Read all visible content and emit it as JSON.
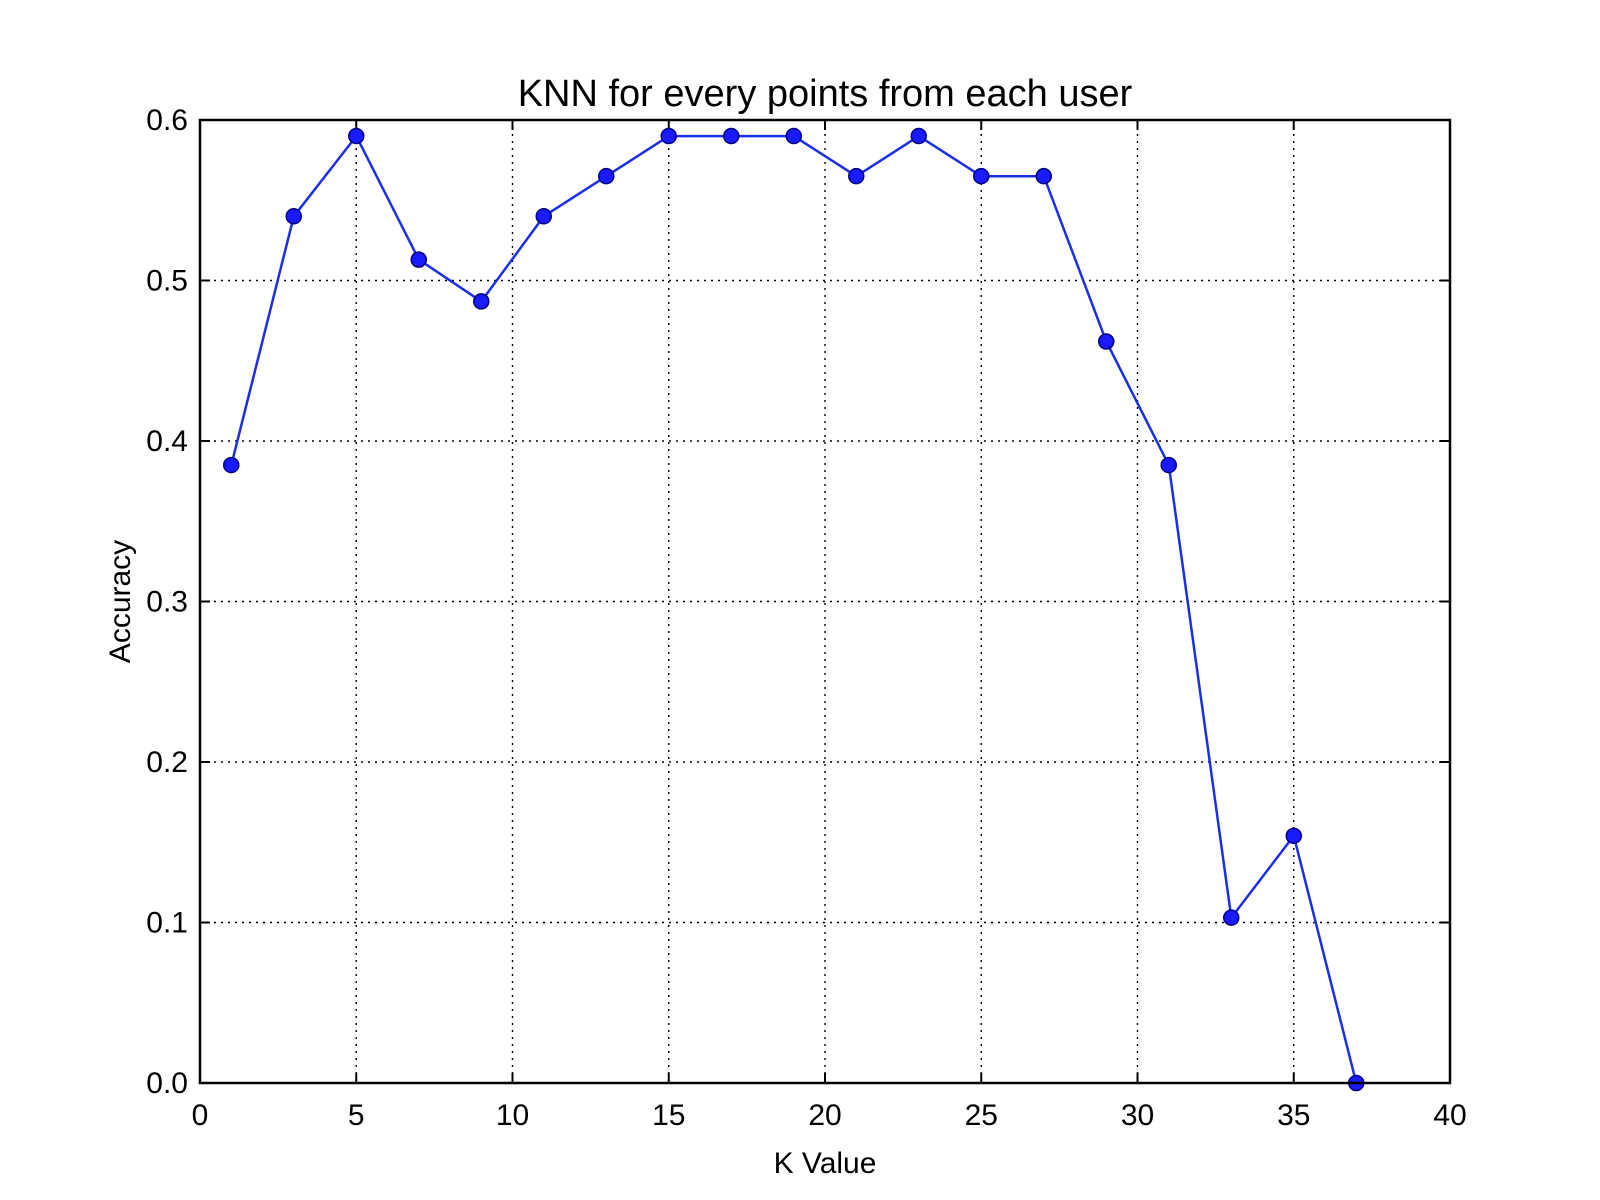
{
  "chart_data": {
    "type": "line",
    "title": "KNN for every points from each user",
    "xlabel": "K Value",
    "ylabel": "Accuracy",
    "xlim": [
      0,
      40
    ],
    "ylim": [
      0,
      0.6
    ],
    "xticks": [
      0,
      5,
      10,
      15,
      20,
      25,
      30,
      35,
      40
    ],
    "yticks": [
      0.0,
      0.1,
      0.2,
      0.3,
      0.4,
      0.5,
      0.6
    ],
    "xtick_labels": [
      "0",
      "5",
      "10",
      "15",
      "20",
      "25",
      "30",
      "35",
      "40"
    ],
    "ytick_labels": [
      "0.0",
      "0.1",
      "0.2",
      "0.3",
      "0.4",
      "0.5",
      "0.6"
    ],
    "grid": true,
    "series": [
      {
        "x": [
          1,
          3,
          5,
          7,
          9,
          11,
          13,
          15,
          17,
          19,
          21,
          23,
          25,
          27,
          29,
          31,
          33,
          35,
          37
        ],
        "y": [
          0.385,
          0.54,
          0.59,
          0.513,
          0.487,
          0.54,
          0.565,
          0.59,
          0.59,
          0.59,
          0.565,
          0.59,
          0.565,
          0.565,
          0.462,
          0.385,
          0.103,
          0.154,
          0.0
        ],
        "color": "#1a1aff",
        "line_color": "#1a2fe6",
        "marker": "circle"
      }
    ]
  }
}
